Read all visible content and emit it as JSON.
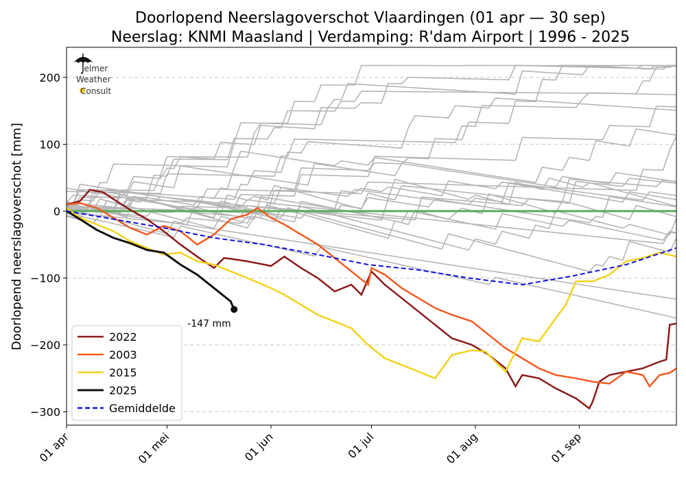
{
  "chart_data": {
    "type": "line",
    "title": "Doorlopend Neerslagoverschot Vlaardingen (01 apr — 30 sep)",
    "subtitle": "Neerslag: KNMI Maasland | Verdamping: R'dam Airport | 1996 - 2025",
    "ylabel": "Doorlopend neerslagoverschot [mm]",
    "xlabel": "",
    "x_unit": "date",
    "x_range": [
      "01 apr",
      "30 sep"
    ],
    "ylim": [
      -320,
      245
    ],
    "yticks": [
      200,
      100,
      0,
      -100,
      -200,
      -300
    ],
    "ytick_labels": [
      "200",
      "100",
      "0",
      "−100",
      "−200",
      "−300"
    ],
    "xticks": [
      "01 apr",
      "01 mei",
      "01 jun",
      "01 jul",
      "01 aug",
      "01 sep"
    ],
    "grid": "horizontal dashed",
    "legend_position": "bottom-left",
    "zero_line_color": "#5aac5a",
    "series": [
      {
        "name": "2022",
        "color": "#8b1a1a",
        "dates": [
          "01 apr",
          "05 apr",
          "08 apr",
          "12 apr",
          "15 apr",
          "20 apr",
          "25 apr",
          "30 apr",
          "05 mei",
          "10 mei",
          "15 mei",
          "18 mei",
          "21 mei",
          "25 mei",
          "30 mei",
          "01 jun",
          "05 jun",
          "10 jun",
          "15 jun",
          "20 jun",
          "25 jun",
          "28 jun",
          "01 jul",
          "05 jul",
          "10 jul",
          "15 jul",
          "20 jul",
          "25 jul",
          "31 jul",
          "05 aug",
          "10 aug",
          "13 aug",
          "15 aug",
          "20 aug",
          "25 aug",
          "31 aug",
          "04 sep",
          "05 sep",
          "07 sep",
          "10 sep",
          "15 sep",
          "20 sep",
          "25 sep",
          "27 sep",
          "28 sep",
          "30 sep"
        ],
        "values": [
          10,
          15,
          32,
          28,
          18,
          2,
          -12,
          -30,
          -50,
          -68,
          -85,
          -70,
          -72,
          -75,
          -80,
          -82,
          -68,
          -85,
          -100,
          -120,
          -110,
          -125,
          -90,
          -110,
          -130,
          -150,
          -170,
          -190,
          -200,
          -215,
          -235,
          -262,
          -245,
          -250,
          -265,
          -280,
          -295,
          -285,
          -255,
          -245,
          -240,
          -235,
          -225,
          -222,
          -170,
          -168
        ]
      },
      {
        "name": "2003",
        "color": "#f05a22",
        "dates": [
          "01 apr",
          "05 apr",
          "10 apr",
          "15 apr",
          "20 apr",
          "25 apr",
          "30 apr",
          "05 mei",
          "10 mei",
          "15 mei",
          "20 mei",
          "25 mei",
          "28 mei",
          "01 jun",
          "05 jun",
          "10 jun",
          "15 jun",
          "20 jun",
          "25 jun",
          "30 jun",
          "01 jul",
          "05 jul",
          "10 jul",
          "15 jul",
          "20 jul",
          "25 jul",
          "31 jul",
          "05 aug",
          "10 aug",
          "15 aug",
          "20 aug",
          "25 aug",
          "31 aug",
          "05 sep",
          "10 sep",
          "15 sep",
          "20 sep",
          "22 sep",
          "25 sep",
          "28 sep",
          "30 sep"
        ],
        "values": [
          10,
          12,
          5,
          -10,
          -25,
          -35,
          -22,
          -30,
          -50,
          -35,
          -12,
          -5,
          5,
          -10,
          -20,
          -35,
          -50,
          -70,
          -90,
          -110,
          -85,
          -95,
          -115,
          -130,
          -145,
          -155,
          -165,
          -185,
          -205,
          -220,
          -235,
          -245,
          -250,
          -255,
          -258,
          -240,
          -245,
          -262,
          -245,
          -242,
          -235
        ]
      },
      {
        "name": "2015",
        "color": "#f2d21e",
        "dates": [
          "01 apr",
          "05 apr",
          "10 apr",
          "15 apr",
          "20 apr",
          "25 apr",
          "30 apr",
          "05 mei",
          "10 mei",
          "15 mei",
          "20 mei",
          "25 mei",
          "01 jun",
          "05 jun",
          "10 jun",
          "15 jun",
          "20 jun",
          "25 jun",
          "30 jun",
          "05 jul",
          "10 jul",
          "15 jul",
          "20 jul",
          "25 jul",
          "31 jul",
          "04 aug",
          "07 aug",
          "10 aug",
          "15 aug",
          "20 aug",
          "25 aug",
          "28 aug",
          "31 aug",
          "05 sep",
          "10 sep",
          "15 sep",
          "20 sep",
          "25 sep",
          "30 sep"
        ],
        "values": [
          5,
          -10,
          -20,
          -30,
          -45,
          -55,
          -65,
          -62,
          -75,
          -80,
          -90,
          -100,
          -115,
          -125,
          -140,
          -155,
          -165,
          -175,
          -200,
          -220,
          -230,
          -240,
          -250,
          -215,
          -208,
          -210,
          -225,
          -240,
          -190,
          -195,
          -160,
          -140,
          -105,
          -105,
          -95,
          -75,
          -70,
          -62,
          -68
        ]
      },
      {
        "name": "2025",
        "color": "#111111",
        "dates": [
          "01 apr",
          "05 apr",
          "10 apr",
          "15 apr",
          "20 apr",
          "25 apr",
          "30 apr",
          "05 mei",
          "10 mei",
          "15 mei",
          "20 mei",
          "21 mei"
        ],
        "values": [
          0,
          -12,
          -28,
          -40,
          -48,
          -58,
          -62,
          -80,
          -95,
          -115,
          -135,
          -147
        ]
      },
      {
        "name": "Gemiddelde",
        "color": "#1010dd",
        "dates": [
          "01 apr",
          "15 apr",
          "30 apr",
          "15 mei",
          "30 mei",
          "15 jun",
          "30 jun",
          "15 jul",
          "30 jul",
          "15 aug",
          "30 aug",
          "15 sep",
          "30 sep"
        ],
        "values": [
          0,
          -12,
          -25,
          -40,
          -50,
          -65,
          -80,
          -88,
          -100,
          -110,
          -97,
          -80,
          -55
        ]
      }
    ],
    "annotations": [
      {
        "text": "-147 mm",
        "date": "21 mei",
        "value": -147
      }
    ],
    "logo": [
      "Jelmer",
      "Weather",
      "Consult"
    ],
    "background_series_color": "#b5b5b5"
  }
}
